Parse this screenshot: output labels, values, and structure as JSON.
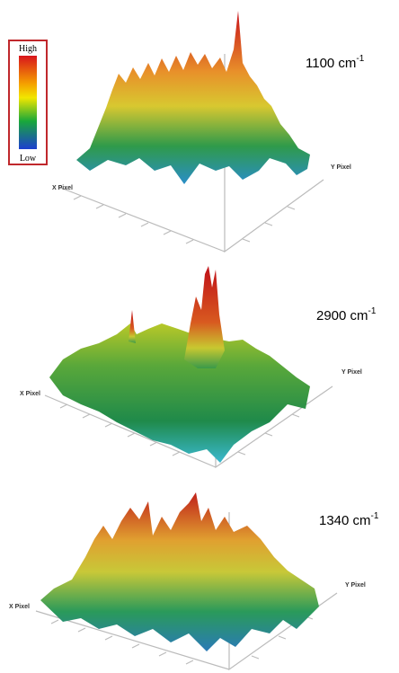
{
  "colorbar": {
    "high": "High",
    "low": "Low"
  },
  "panels": [
    {
      "wavenumber": "1100 cm",
      "unit_exponent": "-1",
      "x_axis": "X Pixel",
      "y_axis": "Y Pixel"
    },
    {
      "wavenumber": "2900 cm",
      "unit_exponent": "-1",
      "x_axis": "X Pixel",
      "y_axis": "Y Pixel"
    },
    {
      "wavenumber": "1340 cm",
      "unit_exponent": "-1",
      "x_axis": "X Pixel",
      "y_axis": "Y Pixel"
    }
  ]
}
